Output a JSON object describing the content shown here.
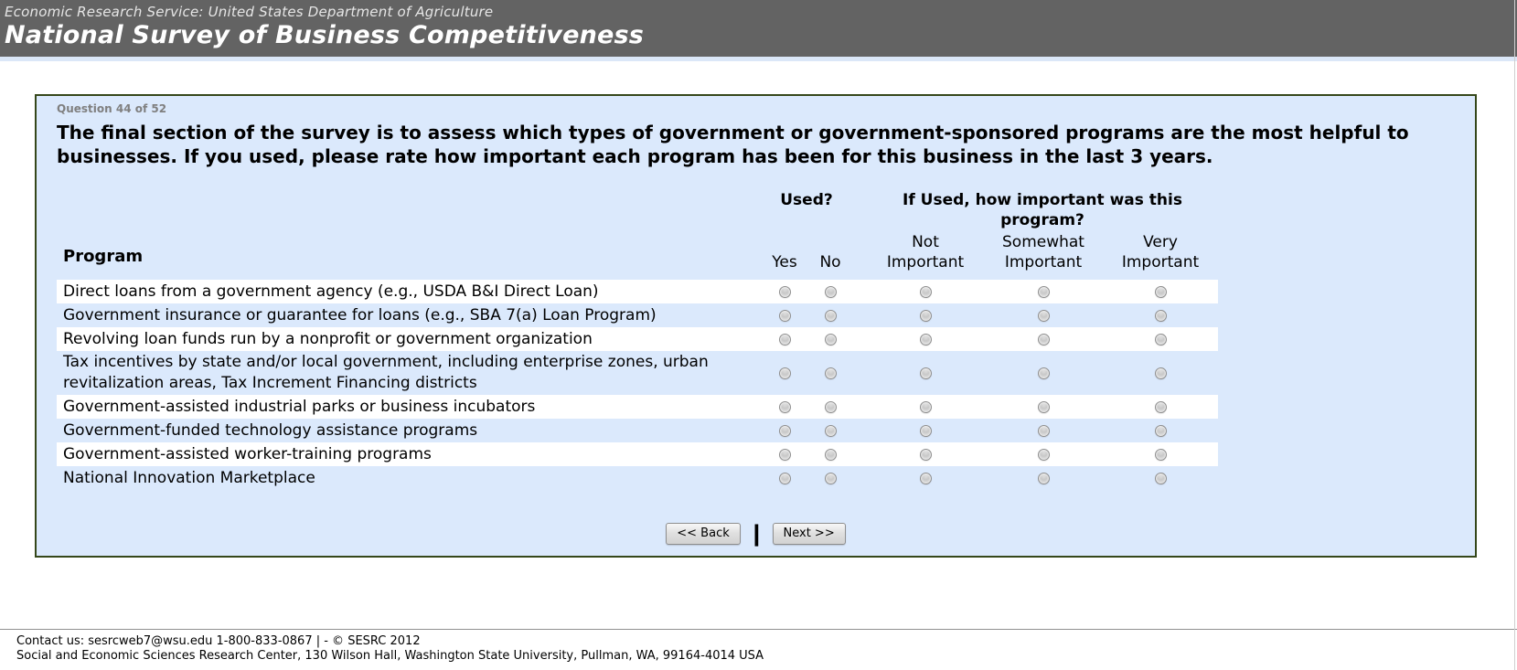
{
  "header": {
    "agency": "Economic Research Service: United States Department of Agriculture",
    "title": "National Survey of Business Competitiveness"
  },
  "question": {
    "progress": "Question 44 of 52",
    "text": "The final section of the survey is to assess which types of government or government-sponsored programs are the most helpful to businesses. If you used, please rate how important each program has been for this business in the last 3 years."
  },
  "table": {
    "program_header": "Program",
    "used_header": "Used?",
    "importance_header": "If Used, how important was this program?",
    "used_columns": [
      {
        "label": "Yes"
      },
      {
        "label": "No"
      }
    ],
    "importance_columns": [
      {
        "line1": "Not",
        "line2": "Important"
      },
      {
        "line1": "Somewhat",
        "line2": "Important"
      },
      {
        "line1": "Very",
        "line2": "Important"
      }
    ],
    "rows": [
      {
        "label": "Direct loans from a government agency (e.g., USDA B&I Direct Loan)"
      },
      {
        "label": "Government insurance or guarantee for loans (e.g., SBA 7(a) Loan Program)"
      },
      {
        "label": "Revolving loan funds run by a nonprofit or government organization"
      },
      {
        "label": "Tax incentives by state and/or local government, including enterprise zones, urban revitalization areas, Tax Increment Financing districts"
      },
      {
        "label": "Government-assisted industrial parks or business incubators"
      },
      {
        "label": "Government-funded technology assistance programs"
      },
      {
        "label": "Government-assisted worker-training programs"
      },
      {
        "label": "National Innovation Marketplace"
      }
    ]
  },
  "buttons": {
    "back": "<< Back",
    "separator": "|",
    "next": "Next >>"
  },
  "footer": {
    "line1": "Contact us: sesrcweb7@wsu.edu 1-800-833-0867 | - © SESRC 2012",
    "line2": "Social and Economic Sciences Research Center, 130 Wilson Hall, Washington State University, Pullman, WA, 99164-4014 USA"
  },
  "colors": {
    "banner_bg": "#636363",
    "panel_bg": "#dbe9fc",
    "panel_border": "#35471a",
    "accent_strip": "#dbe7f8",
    "row_highlight": "#ffffff",
    "progress_text": "#7f7f7f"
  }
}
